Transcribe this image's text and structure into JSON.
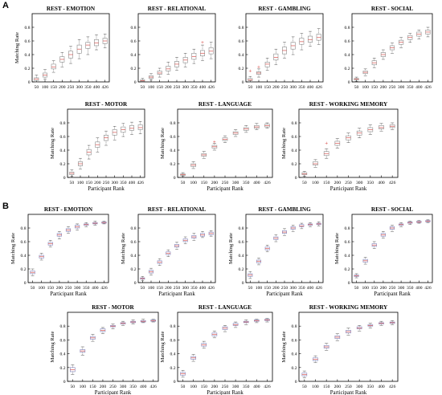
{
  "figure": {
    "panels": [
      {
        "letter": "A"
      },
      {
        "letter": "B"
      }
    ]
  },
  "chart_data": [
    {
      "type": "box",
      "panel": "A",
      "title": "REST - EMOTION",
      "xlabel": "",
      "ylabel": "Matching Rate",
      "categories": [
        "50",
        "100",
        "150",
        "200",
        "250",
        "300",
        "350",
        "400",
        "426"
      ],
      "medians": [
        0.04,
        0.1,
        0.22,
        0.33,
        0.4,
        0.48,
        0.54,
        0.57,
        0.6
      ],
      "q1": [
        0.02,
        0.07,
        0.19,
        0.29,
        0.35,
        0.42,
        0.49,
        0.53,
        0.56
      ],
      "q3": [
        0.06,
        0.13,
        0.26,
        0.37,
        0.45,
        0.54,
        0.58,
        0.62,
        0.64
      ],
      "wmin": [
        0.0,
        0.04,
        0.14,
        0.22,
        0.27,
        0.34,
        0.4,
        0.47,
        0.5
      ],
      "wmax": [
        0.1,
        0.18,
        0.31,
        0.43,
        0.52,
        0.62,
        0.66,
        0.69,
        0.7
      ],
      "outliers": [],
      "ylim": [
        0,
        1
      ],
      "yticks": [
        "0",
        "0.2",
        "0.4",
        "0.6",
        "0.8"
      ]
    },
    {
      "type": "box",
      "panel": "A",
      "title": "REST - RELATIONAL",
      "xlabel": "",
      "ylabel": "",
      "categories": [
        "50",
        "100",
        "150",
        "200",
        "250",
        "300",
        "350",
        "400",
        "426"
      ],
      "medians": [
        0.02,
        0.07,
        0.13,
        0.19,
        0.26,
        0.32,
        0.37,
        0.42,
        0.45
      ],
      "q1": [
        0.01,
        0.05,
        0.11,
        0.16,
        0.22,
        0.28,
        0.33,
        0.38,
        0.41
      ],
      "q3": [
        0.03,
        0.09,
        0.16,
        0.23,
        0.3,
        0.36,
        0.42,
        0.46,
        0.5
      ],
      "wmin": [
        0.0,
        0.03,
        0.07,
        0.11,
        0.17,
        0.22,
        0.27,
        0.31,
        0.34
      ],
      "wmax": [
        0.05,
        0.12,
        0.2,
        0.29,
        0.36,
        0.42,
        0.48,
        0.54,
        0.58
      ],
      "outliers": [
        [
          7,
          0.58
        ]
      ],
      "ylim": [
        0,
        1
      ],
      "yticks": [
        "0",
        "0.2",
        "0.4",
        "0.6",
        "0.8"
      ]
    },
    {
      "type": "box",
      "panel": "A",
      "title": "REST - GAMBLING",
      "xlabel": "",
      "ylabel": "",
      "categories": [
        "50",
        "100",
        "150",
        "200",
        "250",
        "300",
        "350",
        "400",
        "426"
      ],
      "medians": [
        0.03,
        0.13,
        0.26,
        0.36,
        0.46,
        0.53,
        0.59,
        0.62,
        0.65
      ],
      "q1": [
        0.02,
        0.11,
        0.22,
        0.32,
        0.41,
        0.48,
        0.55,
        0.58,
        0.61
      ],
      "q3": [
        0.05,
        0.15,
        0.29,
        0.41,
        0.51,
        0.58,
        0.64,
        0.67,
        0.7
      ],
      "wmin": [
        0.0,
        0.07,
        0.17,
        0.25,
        0.35,
        0.4,
        0.47,
        0.52,
        0.55
      ],
      "wmax": [
        0.08,
        0.19,
        0.35,
        0.48,
        0.58,
        0.66,
        0.71,
        0.74,
        0.78
      ],
      "outliers": [
        [
          0,
          0.16
        ],
        [
          1,
          0.22
        ]
      ],
      "ylim": [
        0,
        1
      ],
      "yticks": [
        "0",
        "0.2",
        "0.4",
        "0.6",
        "0.8"
      ]
    },
    {
      "type": "box",
      "panel": "A",
      "title": "REST - SOCIAL",
      "xlabel": "",
      "ylabel": "",
      "categories": [
        "50",
        "100",
        "150",
        "200",
        "250",
        "300",
        "350",
        "400",
        "426"
      ],
      "medians": [
        0.04,
        0.14,
        0.28,
        0.4,
        0.5,
        0.58,
        0.65,
        0.7,
        0.73
      ],
      "q1": [
        0.03,
        0.12,
        0.25,
        0.37,
        0.47,
        0.55,
        0.62,
        0.67,
        0.7
      ],
      "q3": [
        0.05,
        0.16,
        0.31,
        0.43,
        0.53,
        0.61,
        0.68,
        0.73,
        0.76
      ],
      "wmin": [
        0.01,
        0.09,
        0.21,
        0.33,
        0.42,
        0.5,
        0.58,
        0.63,
        0.66
      ],
      "wmax": [
        0.07,
        0.19,
        0.35,
        0.47,
        0.57,
        0.65,
        0.71,
        0.76,
        0.8
      ],
      "outliers": [],
      "ylim": [
        0,
        1
      ],
      "yticks": [
        "0",
        "0.2",
        "0.4",
        "0.6",
        "0.8"
      ]
    },
    {
      "type": "box",
      "panel": "A",
      "title": "REST - MOTOR",
      "xlabel": "Participant Rank",
      "ylabel": "Matching Rate",
      "categories": [
        "50",
        "100",
        "150",
        "200",
        "250",
        "300",
        "350",
        "400",
        "426"
      ],
      "medians": [
        0.06,
        0.2,
        0.37,
        0.48,
        0.58,
        0.66,
        0.7,
        0.72,
        0.73
      ],
      "q1": [
        0.04,
        0.17,
        0.33,
        0.44,
        0.54,
        0.62,
        0.66,
        0.69,
        0.7
      ],
      "q3": [
        0.08,
        0.23,
        0.41,
        0.52,
        0.62,
        0.7,
        0.74,
        0.76,
        0.77
      ],
      "wmin": [
        0.02,
        0.12,
        0.27,
        0.37,
        0.47,
        0.55,
        0.6,
        0.63,
        0.64
      ],
      "wmax": [
        0.11,
        0.28,
        0.47,
        0.58,
        0.68,
        0.75,
        0.79,
        0.81,
        0.82
      ],
      "outliers": [],
      "ylim": [
        0,
        1
      ],
      "yticks": [
        "0",
        "0.2",
        "0.4",
        "0.6",
        "0.8"
      ]
    },
    {
      "type": "box",
      "panel": "A",
      "title": "REST - LANGUAGE",
      "xlabel": "Participant Rank",
      "ylabel": "Matching Rate",
      "categories": [
        "50",
        "100",
        "150",
        "200",
        "250",
        "300",
        "350",
        "400",
        "426"
      ],
      "medians": [
        0.04,
        0.18,
        0.33,
        0.45,
        0.56,
        0.65,
        0.71,
        0.74,
        0.76
      ],
      "q1": [
        0.03,
        0.16,
        0.31,
        0.43,
        0.54,
        0.63,
        0.69,
        0.72,
        0.74
      ],
      "q3": [
        0.05,
        0.2,
        0.35,
        0.47,
        0.58,
        0.67,
        0.73,
        0.76,
        0.78
      ],
      "wmin": [
        0.02,
        0.13,
        0.28,
        0.4,
        0.51,
        0.6,
        0.66,
        0.7,
        0.72
      ],
      "wmax": [
        0.07,
        0.23,
        0.38,
        0.5,
        0.61,
        0.7,
        0.76,
        0.79,
        0.8
      ],
      "outliers": [
        [
          3,
          0.52
        ]
      ],
      "ylim": [
        0,
        1
      ],
      "yticks": [
        "0",
        "0.2",
        "0.4",
        "0.6",
        "0.8"
      ]
    },
    {
      "type": "box",
      "panel": "A",
      "title": "REST - WORKING MEMORY",
      "xlabel": "Participant Rank",
      "ylabel": "Matching Rate",
      "categories": [
        "50",
        "100",
        "150",
        "200",
        "250",
        "300",
        "350",
        "400",
        "426"
      ],
      "medians": [
        0.05,
        0.2,
        0.35,
        0.5,
        0.58,
        0.65,
        0.7,
        0.73,
        0.75
      ],
      "q1": [
        0.04,
        0.18,
        0.32,
        0.47,
        0.55,
        0.62,
        0.67,
        0.71,
        0.73
      ],
      "q3": [
        0.07,
        0.23,
        0.38,
        0.53,
        0.61,
        0.68,
        0.73,
        0.76,
        0.77
      ],
      "wmin": [
        0.02,
        0.15,
        0.28,
        0.43,
        0.51,
        0.58,
        0.63,
        0.68,
        0.7
      ],
      "wmax": [
        0.09,
        0.26,
        0.42,
        0.57,
        0.65,
        0.72,
        0.77,
        0.79,
        0.8
      ],
      "outliers": [
        [
          2,
          0.5
        ]
      ],
      "ylim": [
        0,
        1
      ],
      "yticks": [
        "0",
        "0.2",
        "0.4",
        "0.6",
        "0.8"
      ]
    },
    {
      "type": "box",
      "panel": "B",
      "title": "REST - EMOTION",
      "xlabel": "Participant Rank",
      "ylabel": "Matching Rate",
      "categories": [
        "50",
        "100",
        "150",
        "200",
        "250",
        "300",
        "350",
        "400",
        "426"
      ],
      "medians": [
        0.15,
        0.38,
        0.57,
        0.7,
        0.77,
        0.82,
        0.85,
        0.87,
        0.88
      ],
      "q1": [
        0.13,
        0.36,
        0.55,
        0.68,
        0.75,
        0.8,
        0.84,
        0.86,
        0.87
      ],
      "q3": [
        0.17,
        0.4,
        0.59,
        0.72,
        0.79,
        0.84,
        0.86,
        0.88,
        0.89
      ],
      "wmin": [
        0.1,
        0.33,
        0.52,
        0.64,
        0.72,
        0.77,
        0.82,
        0.84,
        0.86
      ],
      "wmax": [
        0.2,
        0.43,
        0.62,
        0.75,
        0.82,
        0.86,
        0.88,
        0.9,
        0.9
      ],
      "outliers": [],
      "ylim": [
        0,
        1
      ],
      "yticks": [
        "0",
        "0.2",
        "0.4",
        "0.6",
        "0.8"
      ]
    },
    {
      "type": "box",
      "panel": "B",
      "title": "REST - RELATIONAL",
      "xlabel": "Participant Rank",
      "ylabel": "Matching Rate",
      "categories": [
        "50",
        "100",
        "150",
        "200",
        "250",
        "300",
        "350",
        "400",
        "426"
      ],
      "medians": [
        0.06,
        0.16,
        0.3,
        0.43,
        0.54,
        0.62,
        0.67,
        0.7,
        0.72
      ],
      "q1": [
        0.05,
        0.14,
        0.28,
        0.41,
        0.52,
        0.6,
        0.65,
        0.68,
        0.7
      ],
      "q3": [
        0.07,
        0.18,
        0.32,
        0.45,
        0.56,
        0.64,
        0.69,
        0.72,
        0.74
      ],
      "wmin": [
        0.03,
        0.11,
        0.25,
        0.38,
        0.49,
        0.57,
        0.62,
        0.66,
        0.68
      ],
      "wmax": [
        0.09,
        0.21,
        0.35,
        0.48,
        0.59,
        0.67,
        0.72,
        0.75,
        0.76
      ],
      "outliers": [],
      "ylim": [
        0,
        1
      ],
      "yticks": [
        "0",
        "0.2",
        "0.4",
        "0.6",
        "0.8"
      ]
    },
    {
      "type": "box",
      "panel": "B",
      "title": "REST - GAMBLING",
      "xlabel": "Participant Rank",
      "ylabel": "Matching Rate",
      "categories": [
        "50",
        "100",
        "150",
        "200",
        "250",
        "300",
        "350",
        "400",
        "426"
      ],
      "medians": [
        0.11,
        0.31,
        0.5,
        0.65,
        0.74,
        0.8,
        0.83,
        0.85,
        0.86
      ],
      "q1": [
        0.09,
        0.29,
        0.48,
        0.63,
        0.72,
        0.78,
        0.82,
        0.84,
        0.85
      ],
      "q3": [
        0.13,
        0.33,
        0.52,
        0.67,
        0.76,
        0.82,
        0.85,
        0.86,
        0.87
      ],
      "wmin": [
        0.06,
        0.26,
        0.45,
        0.6,
        0.69,
        0.75,
        0.79,
        0.82,
        0.83
      ],
      "wmax": [
        0.16,
        0.36,
        0.55,
        0.7,
        0.79,
        0.84,
        0.87,
        0.88,
        0.89
      ],
      "outliers": [],
      "ylim": [
        0,
        1
      ],
      "yticks": [
        "0",
        "0.2",
        "0.4",
        "0.6",
        "0.8"
      ]
    },
    {
      "type": "box",
      "panel": "B",
      "title": "REST - SOCIAL",
      "xlabel": "Participant Rank",
      "ylabel": "Matching Rate",
      "categories": [
        "50",
        "100",
        "150",
        "200",
        "250",
        "300",
        "350",
        "400",
        "426"
      ],
      "medians": [
        0.1,
        0.32,
        0.55,
        0.7,
        0.8,
        0.85,
        0.88,
        0.89,
        0.9
      ],
      "q1": [
        0.09,
        0.3,
        0.53,
        0.68,
        0.78,
        0.84,
        0.87,
        0.88,
        0.89
      ],
      "q3": [
        0.11,
        0.34,
        0.57,
        0.72,
        0.82,
        0.86,
        0.89,
        0.9,
        0.91
      ],
      "wmin": [
        0.07,
        0.27,
        0.5,
        0.65,
        0.75,
        0.82,
        0.85,
        0.87,
        0.88
      ],
      "wmax": [
        0.13,
        0.37,
        0.6,
        0.75,
        0.84,
        0.88,
        0.9,
        0.91,
        0.92
      ],
      "outliers": [],
      "ylim": [
        0,
        1
      ],
      "yticks": [
        "0",
        "0.2",
        "0.4",
        "0.6",
        "0.8"
      ]
    },
    {
      "type": "box",
      "panel": "B",
      "title": "REST - MOTOR",
      "xlabel": "Participant Rank",
      "ylabel": "Matching Rate",
      "categories": [
        "50",
        "100",
        "150",
        "200",
        "250",
        "300",
        "350",
        "400",
        "426"
      ],
      "medians": [
        0.17,
        0.44,
        0.63,
        0.74,
        0.8,
        0.84,
        0.86,
        0.87,
        0.88
      ],
      "q1": [
        0.14,
        0.42,
        0.61,
        0.72,
        0.79,
        0.83,
        0.85,
        0.86,
        0.87
      ],
      "q3": [
        0.2,
        0.46,
        0.65,
        0.76,
        0.81,
        0.85,
        0.87,
        0.88,
        0.89
      ],
      "wmin": [
        0.1,
        0.38,
        0.58,
        0.69,
        0.76,
        0.81,
        0.83,
        0.85,
        0.86
      ],
      "wmax": [
        0.24,
        0.5,
        0.68,
        0.78,
        0.83,
        0.87,
        0.89,
        0.9,
        0.9
      ],
      "outliers": [],
      "ylim": [
        0,
        1
      ],
      "yticks": [
        "0",
        "0.2",
        "0.4",
        "0.6",
        "0.8"
      ]
    },
    {
      "type": "box",
      "panel": "B",
      "title": "REST - LANGUAGE",
      "xlabel": "Participant Rank",
      "ylabel": "Matching Rate",
      "categories": [
        "50",
        "100",
        "150",
        "200",
        "250",
        "300",
        "350",
        "400",
        "426"
      ],
      "medians": [
        0.11,
        0.34,
        0.53,
        0.68,
        0.77,
        0.82,
        0.86,
        0.88,
        0.89
      ],
      "q1": [
        0.09,
        0.32,
        0.51,
        0.66,
        0.75,
        0.81,
        0.85,
        0.87,
        0.88
      ],
      "q3": [
        0.13,
        0.36,
        0.55,
        0.7,
        0.79,
        0.84,
        0.87,
        0.89,
        0.9
      ],
      "wmin": [
        0.06,
        0.29,
        0.48,
        0.63,
        0.72,
        0.78,
        0.82,
        0.85,
        0.86
      ],
      "wmax": [
        0.16,
        0.39,
        0.58,
        0.73,
        0.81,
        0.86,
        0.89,
        0.9,
        0.91
      ],
      "outliers": [],
      "ylim": [
        0,
        1
      ],
      "yticks": [
        "0",
        "0.2",
        "0.4",
        "0.6",
        "0.8"
      ]
    },
    {
      "type": "box",
      "panel": "B",
      "title": "REST - WORKING MEMORY",
      "xlabel": "Participant Rank",
      "ylabel": "Matching Rate",
      "categories": [
        "50",
        "100",
        "150",
        "200",
        "250",
        "300",
        "350",
        "400",
        "426"
      ],
      "medians": [
        0.1,
        0.32,
        0.5,
        0.64,
        0.72,
        0.77,
        0.81,
        0.84,
        0.85
      ],
      "q1": [
        0.08,
        0.3,
        0.48,
        0.62,
        0.7,
        0.76,
        0.8,
        0.83,
        0.84
      ],
      "q3": [
        0.12,
        0.34,
        0.52,
        0.66,
        0.74,
        0.79,
        0.82,
        0.85,
        0.86
      ],
      "wmin": [
        0.05,
        0.27,
        0.45,
        0.59,
        0.67,
        0.73,
        0.77,
        0.81,
        0.82
      ],
      "wmax": [
        0.15,
        0.37,
        0.55,
        0.69,
        0.77,
        0.81,
        0.84,
        0.87,
        0.88
      ],
      "outliers": [],
      "ylim": [
        0,
        1
      ],
      "yticks": [
        "0",
        "0.2",
        "0.4",
        "0.6",
        "0.8"
      ]
    }
  ]
}
